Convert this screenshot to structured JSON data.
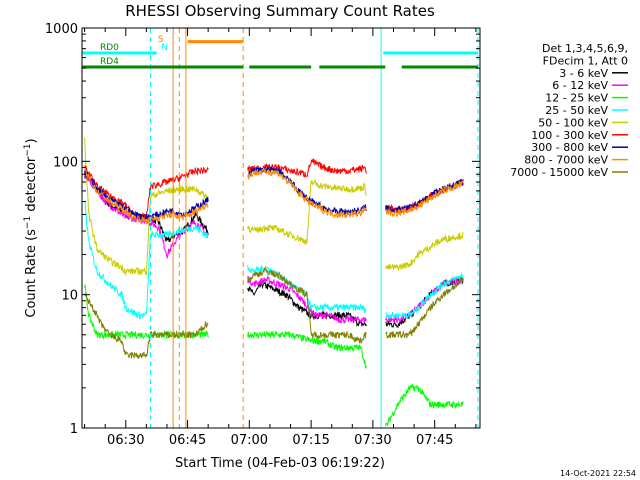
{
  "chart_data": {
    "type": "line",
    "title": "RHESSI Observing Summary Count Rates",
    "xlabel": "Start Time (04-Feb-03 06:19:22)",
    "ylabel": "Count Rate (s⁻¹ detector⁻¹)",
    "ylabel_base": "Count Rate (s",
    "ylabel_mid": " detector",
    "ylabel_end": ")",
    "ylabel_sup": "−1",
    "x_tick_labels": [
      "06:30",
      "06:45",
      "07:00",
      "07:15",
      "07:30",
      "07:45"
    ],
    "x_tick_minutes": [
      30,
      45,
      60,
      75,
      90,
      105
    ],
    "xlim_minutes": [
      19.37,
      116
    ],
    "y_scale": "log",
    "ylim": [
      1,
      1000
    ],
    "y_tick_labels": [
      "1",
      "10",
      "100",
      "1000"
    ],
    "y_tick_values": [
      1,
      10,
      100,
      1000
    ],
    "legend_header": [
      "Det 1,3,4,5,6,9,",
      "FDecim 1, Att 0"
    ],
    "legend_position": "right-outside",
    "timestamp": "14-Oct-2021 22:54",
    "data_gaps_minutes": [
      [
        50,
        59.5
      ],
      [
        88.5,
        93
      ]
    ],
    "series": [
      {
        "name": "3 - 6 keV",
        "color": "#000000",
        "points": [
          [
            20,
            80
          ],
          [
            25,
            50
          ],
          [
            30,
            40
          ],
          [
            35,
            38
          ],
          [
            38,
            35
          ],
          [
            40,
            25
          ],
          [
            42,
            28
          ],
          [
            44,
            30
          ],
          [
            47,
            40
          ],
          [
            61,
            10
          ],
          [
            63,
            12
          ],
          [
            66,
            11
          ],
          [
            69,
            10
          ],
          [
            72,
            8
          ],
          [
            75,
            7
          ],
          [
            78,
            7
          ],
          [
            81,
            7
          ],
          [
            84,
            7
          ],
          [
            87,
            6
          ],
          [
            93,
            6
          ],
          [
            96,
            6
          ],
          [
            99,
            7
          ],
          [
            101,
            8
          ],
          [
            104,
            10
          ],
          [
            107,
            12
          ],
          [
            112,
            13
          ]
        ]
      },
      {
        "name": "6 - 12 keV",
        "color": "#ff00ff",
        "points": [
          [
            20,
            80
          ],
          [
            25,
            50
          ],
          [
            30,
            38
          ],
          [
            35,
            36
          ],
          [
            38,
            32
          ],
          [
            40,
            20
          ],
          [
            42,
            25
          ],
          [
            44,
            30
          ],
          [
            47,
            35
          ],
          [
            61,
            12
          ],
          [
            64,
            13
          ],
          [
            67,
            12
          ],
          [
            70,
            11
          ],
          [
            73,
            9
          ],
          [
            76,
            7
          ],
          [
            79,
            7
          ],
          [
            82,
            6.5
          ],
          [
            85,
            6.5
          ],
          [
            88,
            6.5
          ],
          [
            93,
            6.5
          ],
          [
            96,
            6.5
          ],
          [
            99,
            7
          ],
          [
            101,
            8
          ],
          [
            104,
            10
          ],
          [
            107,
            12
          ],
          [
            112,
            13
          ]
        ]
      },
      {
        "name": "12 - 25 keV",
        "color": "#00ff00",
        "points": [
          [
            20,
            12
          ],
          [
            21,
            7
          ],
          [
            23,
            5
          ],
          [
            25,
            5
          ],
          [
            30,
            5
          ],
          [
            35,
            5
          ],
          [
            40,
            5
          ],
          [
            47,
            5
          ],
          [
            61,
            5
          ],
          [
            64,
            5
          ],
          [
            67,
            5
          ],
          [
            70,
            5
          ],
          [
            75,
            4.5
          ],
          [
            78,
            4.5
          ],
          [
            81,
            4
          ],
          [
            84,
            4
          ],
          [
            87,
            4
          ],
          [
            93,
            1
          ],
          [
            96,
            1.5
          ],
          [
            99,
            2
          ],
          [
            101,
            2
          ],
          [
            104,
            1.5
          ],
          [
            107,
            1.5
          ],
          [
            110,
            1.5
          ],
          [
            112,
            1.5
          ]
        ]
      },
      {
        "name": "25 - 50 keV",
        "color": "#00ffff",
        "points": [
          [
            20,
            50
          ],
          [
            21,
            25
          ],
          [
            23,
            15
          ],
          [
            26,
            12
          ],
          [
            29,
            10
          ],
          [
            30,
            8
          ],
          [
            33,
            7
          ],
          [
            35,
            7
          ],
          [
            36,
            28
          ],
          [
            40,
            28
          ],
          [
            43,
            30
          ],
          [
            47,
            32
          ],
          [
            61,
            15
          ],
          [
            64,
            16
          ],
          [
            67,
            14
          ],
          [
            70,
            12
          ],
          [
            74,
            10
          ],
          [
            75,
            8
          ],
          [
            78,
            8
          ],
          [
            81,
            8
          ],
          [
            84,
            8
          ],
          [
            87,
            8
          ],
          [
            93,
            7
          ],
          [
            96,
            7
          ],
          [
            99,
            7
          ],
          [
            101,
            8
          ],
          [
            104,
            10
          ],
          [
            107,
            12
          ],
          [
            112,
            14
          ]
        ]
      },
      {
        "name": "50 - 100 keV",
        "color": "#cccc00",
        "points": [
          [
            20,
            150
          ],
          [
            21,
            40
          ],
          [
            23,
            22
          ],
          [
            26,
            18
          ],
          [
            29,
            16
          ],
          [
            30,
            15
          ],
          [
            35,
            15
          ],
          [
            36,
            55
          ],
          [
            40,
            60
          ],
          [
            43,
            62
          ],
          [
            47,
            62
          ],
          [
            61,
            30
          ],
          [
            64,
            32
          ],
          [
            67,
            31
          ],
          [
            70,
            28
          ],
          [
            74,
            25
          ],
          [
            75,
            70
          ],
          [
            78,
            65
          ],
          [
            81,
            63
          ],
          [
            84,
            62
          ],
          [
            87,
            63
          ],
          [
            88,
            65
          ],
          [
            93,
            16
          ],
          [
            96,
            16
          ],
          [
            99,
            17
          ],
          [
            101,
            20
          ],
          [
            104,
            23
          ],
          [
            107,
            26
          ],
          [
            112,
            28
          ]
        ]
      },
      {
        "name": "100 - 300 keV",
        "color": "#ff0000",
        "points": [
          [
            20,
            90
          ],
          [
            23,
            65
          ],
          [
            26,
            55
          ],
          [
            29,
            50
          ],
          [
            32,
            40
          ],
          [
            35,
            38
          ],
          [
            36,
            65
          ],
          [
            40,
            70
          ],
          [
            43,
            75
          ],
          [
            47,
            85
          ],
          [
            61,
            88
          ],
          [
            64,
            90
          ],
          [
            67,
            90
          ],
          [
            70,
            85
          ],
          [
            74,
            80
          ],
          [
            75,
            100
          ],
          [
            78,
            90
          ],
          [
            81,
            85
          ],
          [
            84,
            85
          ],
          [
            87,
            88
          ],
          [
            88,
            90
          ],
          [
            93,
            45
          ],
          [
            96,
            43
          ],
          [
            99,
            45
          ],
          [
            101,
            48
          ],
          [
            104,
            55
          ],
          [
            107,
            62
          ],
          [
            112,
            70
          ]
        ]
      },
      {
        "name": "300 - 800 keV",
        "color": "#0000aa",
        "points": [
          [
            20,
            85
          ],
          [
            23,
            62
          ],
          [
            26,
            52
          ],
          [
            29,
            46
          ],
          [
            32,
            40
          ],
          [
            35,
            38
          ],
          [
            38,
            40
          ],
          [
            41,
            43
          ],
          [
            44,
            40
          ],
          [
            47,
            45
          ],
          [
            61,
            85
          ],
          [
            64,
            87
          ],
          [
            67,
            85
          ],
          [
            70,
            70
          ],
          [
            72,
            60
          ],
          [
            75,
            50
          ],
          [
            78,
            45
          ],
          [
            81,
            42
          ],
          [
            84,
            42
          ],
          [
            87,
            43
          ],
          [
            88,
            45
          ],
          [
            93,
            45
          ],
          [
            96,
            43
          ],
          [
            99,
            45
          ],
          [
            101,
            48
          ],
          [
            104,
            55
          ],
          [
            107,
            62
          ],
          [
            112,
            70
          ]
        ]
      },
      {
        "name": "800 - 7000 keV",
        "color": "#ff8800",
        "points": [
          [
            20,
            85
          ],
          [
            23,
            60
          ],
          [
            26,
            50
          ],
          [
            29,
            44
          ],
          [
            32,
            38
          ],
          [
            35,
            36
          ],
          [
            38,
            38
          ],
          [
            41,
            40
          ],
          [
            44,
            38
          ],
          [
            47,
            42
          ],
          [
            61,
            82
          ],
          [
            64,
            84
          ],
          [
            67,
            82
          ],
          [
            70,
            68
          ],
          [
            72,
            58
          ],
          [
            75,
            48
          ],
          [
            78,
            43
          ],
          [
            81,
            40
          ],
          [
            84,
            40
          ],
          [
            87,
            41
          ],
          [
            88,
            43
          ],
          [
            93,
            42
          ],
          [
            96,
            41
          ],
          [
            99,
            43
          ],
          [
            101,
            46
          ],
          [
            104,
            53
          ],
          [
            107,
            60
          ],
          [
            112,
            68
          ]
        ]
      },
      {
        "name": "7000 - 15000 keV",
        "color": "#808000",
        "points": [
          [
            20,
            10
          ],
          [
            22,
            8
          ],
          [
            24,
            6
          ],
          [
            26,
            5
          ],
          [
            29,
            4.5
          ],
          [
            30,
            3.5
          ],
          [
            35,
            3.5
          ],
          [
            36,
            5
          ],
          [
            40,
            5
          ],
          [
            44,
            5
          ],
          [
            47,
            5
          ],
          [
            61,
            14
          ],
          [
            64,
            15
          ],
          [
            67,
            14
          ],
          [
            70,
            12
          ],
          [
            74,
            10
          ],
          [
            75,
            5
          ],
          [
            78,
            5
          ],
          [
            81,
            5
          ],
          [
            84,
            5
          ],
          [
            87,
            4.5
          ],
          [
            88,
            5
          ],
          [
            93,
            5
          ],
          [
            96,
            5
          ],
          [
            99,
            5
          ],
          [
            101,
            6
          ],
          [
            104,
            8
          ],
          [
            107,
            10
          ],
          [
            112,
            13
          ]
        ]
      }
    ],
    "upper_bars": [
      {
        "label": "RD0",
        "color": "#00ffff",
        "y": 650,
        "segments": [
          [
            19.37,
            37.5
          ],
          [
            92.5,
            115.5
          ]
        ]
      },
      {
        "label": "RD4",
        "color": "#008800",
        "y": 510,
        "segments": [
          [
            19.37,
            58.5
          ],
          [
            60,
            75
          ],
          [
            77,
            93
          ],
          [
            97,
            115.5
          ]
        ]
      },
      {
        "label": "",
        "color": "#ff8800",
        "y": 790,
        "segments": [
          [
            45,
            58.5
          ]
        ]
      }
    ],
    "markers": [
      {
        "label": "S",
        "color": "#ff8800",
        "at_minute": 37.8
      },
      {
        "label": "N",
        "color": "#00ffff",
        "at_minute": 38.6
      }
    ],
    "vertical_lines": [
      {
        "minute": 36.0,
        "color": "#00ffff",
        "style": "dashed"
      },
      {
        "minute": 41.5,
        "color": "#ff8800",
        "style": "solid"
      },
      {
        "minute": 43.0,
        "color": "#ff8800",
        "style": "dashed"
      },
      {
        "minute": 44.6,
        "color": "#ff8800",
        "style": "solid"
      },
      {
        "minute": 58.5,
        "color": "#ff8800",
        "style": "dashed"
      },
      {
        "minute": 92.0,
        "color": "#00ffff",
        "style": "solid"
      },
      {
        "minute": 115.5,
        "color": "#00ffff",
        "style": "dashed"
      }
    ]
  }
}
